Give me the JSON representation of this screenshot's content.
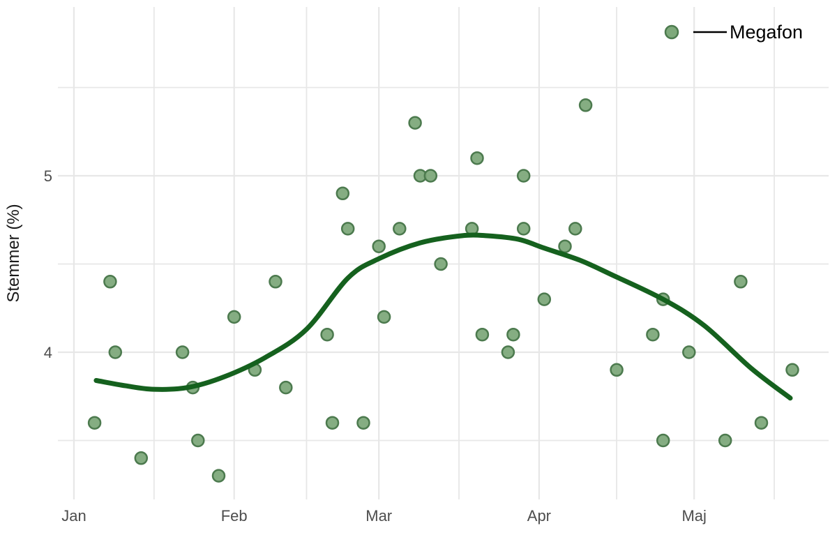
{
  "chart_data": {
    "type": "scatter",
    "title": "",
    "xlabel": "",
    "ylabel": "Stemmer (%)",
    "legend": {
      "label": "Megafon",
      "position": "top-right-inside"
    },
    "x_axis": {
      "unit": "day-of-year",
      "tick_labels": [
        "Jan",
        "Feb",
        "Mar",
        "Apr",
        "Maj"
      ],
      "tick_days": [
        0,
        31,
        59,
        90,
        120
      ],
      "minor_grid_days": [
        15.5,
        45,
        74.5,
        105,
        135.5
      ]
    },
    "y_axis": {
      "tick_labels": [
        "4",
        "5"
      ],
      "tick_values": [
        4,
        5
      ],
      "minor_grid_values": [
        3.5,
        4.5,
        5.5
      ],
      "range": [
        3.17,
        5.96
      ]
    },
    "grid": true,
    "series": [
      {
        "name": "Megafon",
        "type": "scatter",
        "points_day_value": [
          [
            4,
            3.6
          ],
          [
            7,
            4.4
          ],
          [
            8,
            4.0
          ],
          [
            13,
            3.4
          ],
          [
            21,
            4.0
          ],
          [
            23,
            3.8
          ],
          [
            24,
            3.5
          ],
          [
            28,
            3.3
          ],
          [
            31,
            4.2
          ],
          [
            35,
            3.9
          ],
          [
            39,
            4.4
          ],
          [
            41,
            3.8
          ],
          [
            49,
            4.1
          ],
          [
            50,
            3.6
          ],
          [
            52,
            4.9
          ],
          [
            53,
            4.7
          ],
          [
            56,
            3.6
          ],
          [
            59,
            4.6
          ],
          [
            60,
            4.2
          ],
          [
            63,
            4.7
          ],
          [
            66,
            5.3
          ],
          [
            67,
            5.0
          ],
          [
            69,
            5.0
          ],
          [
            71,
            4.5
          ],
          [
            77,
            4.7
          ],
          [
            78,
            5.1
          ],
          [
            79,
            4.1
          ],
          [
            84,
            4.0
          ],
          [
            85,
            4.1
          ],
          [
            87,
            5.0
          ],
          [
            87,
            4.7
          ],
          [
            91,
            4.3
          ],
          [
            95,
            4.6
          ],
          [
            97,
            4.7
          ],
          [
            99,
            5.4
          ],
          [
            105,
            3.9
          ],
          [
            112,
            4.1
          ],
          [
            114,
            4.3
          ],
          [
            114,
            3.5
          ],
          [
            119,
            4.0
          ],
          [
            126,
            3.5
          ],
          [
            129,
            4.4
          ],
          [
            133,
            3.6
          ],
          [
            139,
            3.9
          ]
        ]
      },
      {
        "name": "Megafon trend (loess smooth)",
        "type": "smooth-line",
        "points_day_value": [
          [
            4.3,
            3.84
          ],
          [
            10,
            3.81
          ],
          [
            15.4,
            3.79
          ],
          [
            22,
            3.8
          ],
          [
            29,
            3.86
          ],
          [
            37,
            3.97
          ],
          [
            45,
            4.13
          ],
          [
            53,
            4.42
          ],
          [
            59,
            4.53
          ],
          [
            67,
            4.62
          ],
          [
            75,
            4.66
          ],
          [
            80,
            4.66
          ],
          [
            86,
            4.64
          ],
          [
            91,
            4.59
          ],
          [
            98,
            4.52
          ],
          [
            104,
            4.44
          ],
          [
            114,
            4.3
          ],
          [
            122,
            4.15
          ],
          [
            131,
            3.91
          ],
          [
            138.6,
            3.74
          ]
        ]
      }
    ]
  },
  "style": {
    "background": "#ffffff",
    "grid_color": "#e7e7e7",
    "point_fill": "#7ea97b",
    "point_stroke": "#4c7a4e",
    "trend_color": "#15611e",
    "tick_text_color": "#4d4d4d",
    "axis_title_color": "#1a1a1a",
    "legend_line_color": "#000000",
    "legend_text_color": "#000000"
  }
}
